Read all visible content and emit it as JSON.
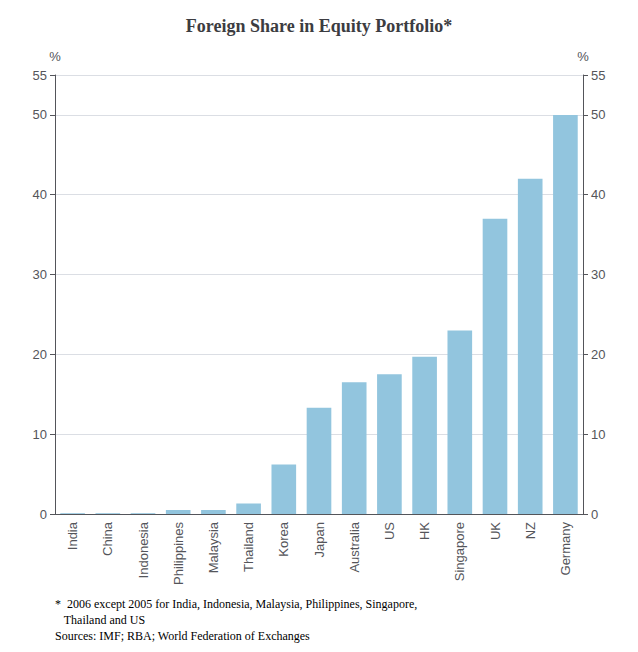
{
  "chart_data": {
    "type": "bar",
    "title": "Foreign Share in Equity Portfolio*",
    "categories": [
      "India",
      "China",
      "Indonesia",
      "Philippines",
      "Malaysia",
      "Thailand",
      "Korea",
      "Japan",
      "Australia",
      "US",
      "HK",
      "Singapore",
      "UK",
      "NZ",
      "Germany"
    ],
    "values": [
      0.1,
      0.1,
      0.1,
      0.5,
      0.5,
      1.3,
      6.2,
      13.3,
      16.5,
      17.5,
      19.7,
      23.0,
      37.0,
      42.0,
      50.0
    ],
    "color": "#92C5DE",
    "ylabel": "%",
    "y2label": "%",
    "ylim": [
      0,
      55
    ],
    "yticks": [
      0,
      10,
      20,
      30,
      40,
      50
    ],
    "y2lim": [
      0,
      55
    ],
    "y2ticks": [
      0,
      10,
      20,
      30,
      40,
      50
    ],
    "grid": true,
    "annotations": [
      "*  2006 except 2005 for India, Indonesia, Malaysia, Philippines, Singapore,",
      "   Thailand and US",
      "Sources: IMF; RBA; World Federation of Exchanges"
    ]
  }
}
